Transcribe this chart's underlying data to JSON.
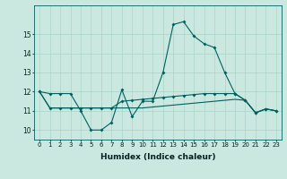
{
  "xlabel": "Humidex (Indice chaleur)",
  "background_color": "#cbe8e0",
  "grid_color": "#aad4c8",
  "line_color": "#006060",
  "x": [
    0,
    1,
    2,
    3,
    4,
    5,
    6,
    7,
    8,
    9,
    10,
    11,
    12,
    13,
    14,
    15,
    16,
    17,
    18,
    19,
    20,
    21,
    22,
    23
  ],
  "series1": [
    12.0,
    11.9,
    11.9,
    11.9,
    11.0,
    10.0,
    10.0,
    10.4,
    12.1,
    10.7,
    11.5,
    11.5,
    13.0,
    15.5,
    15.65,
    14.9,
    14.5,
    14.3,
    13.0,
    11.9,
    11.55,
    10.9,
    11.1,
    11.0
  ],
  "series2": [
    12.0,
    11.15,
    11.15,
    11.15,
    11.15,
    11.15,
    11.15,
    11.15,
    11.5,
    11.55,
    11.6,
    11.65,
    11.7,
    11.75,
    11.8,
    11.85,
    11.9,
    11.9,
    11.9,
    11.9,
    11.55,
    10.9,
    11.1,
    11.0
  ],
  "series3": [
    12.0,
    11.15,
    11.15,
    11.15,
    11.15,
    11.15,
    11.15,
    11.15,
    11.15,
    11.15,
    11.15,
    11.2,
    11.25,
    11.3,
    11.35,
    11.4,
    11.45,
    11.5,
    11.55,
    11.6,
    11.55,
    10.9,
    11.1,
    11.0
  ],
  "ylim": [
    9.5,
    16.5
  ],
  "yticks": [
    10,
    11,
    12,
    13,
    14,
    15
  ],
  "xlim": [
    -0.5,
    23.5
  ],
  "figsize": [
    3.2,
    2.0
  ],
  "dpi": 100
}
